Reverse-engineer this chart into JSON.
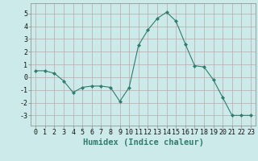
{
  "x": [
    0,
    1,
    2,
    3,
    4,
    5,
    6,
    7,
    8,
    9,
    10,
    11,
    12,
    13,
    14,
    15,
    16,
    17,
    18,
    19,
    20,
    21,
    22,
    23
  ],
  "y": [
    0.5,
    0.5,
    0.3,
    -0.3,
    -1.2,
    -0.8,
    -0.7,
    -0.7,
    -0.8,
    -1.9,
    -0.8,
    2.5,
    3.7,
    4.6,
    5.1,
    4.4,
    2.6,
    0.9,
    0.8,
    -0.2,
    -1.6,
    -3.0,
    -3.0,
    -3.0
  ],
  "line_color": "#2e7d6e",
  "marker": "D",
  "marker_size": 2.0,
  "xlabel": "Humidex (Indice chaleur)",
  "ylim": [
    -3.8,
    5.8
  ],
  "xlim": [
    -0.5,
    23.5
  ],
  "yticks": [
    -3,
    -2,
    -1,
    0,
    1,
    2,
    3,
    4,
    5
  ],
  "xticks": [
    0,
    1,
    2,
    3,
    4,
    5,
    6,
    7,
    8,
    9,
    10,
    11,
    12,
    13,
    14,
    15,
    16,
    17,
    18,
    19,
    20,
    21,
    22,
    23
  ],
  "bg_color": "#cdeaea",
  "grid_color": "#b8a8a8",
  "xlabel_color": "#2e7d6e",
  "xlabel_fontsize": 7.5,
  "tick_fontsize": 6.0,
  "linewidth": 0.8
}
